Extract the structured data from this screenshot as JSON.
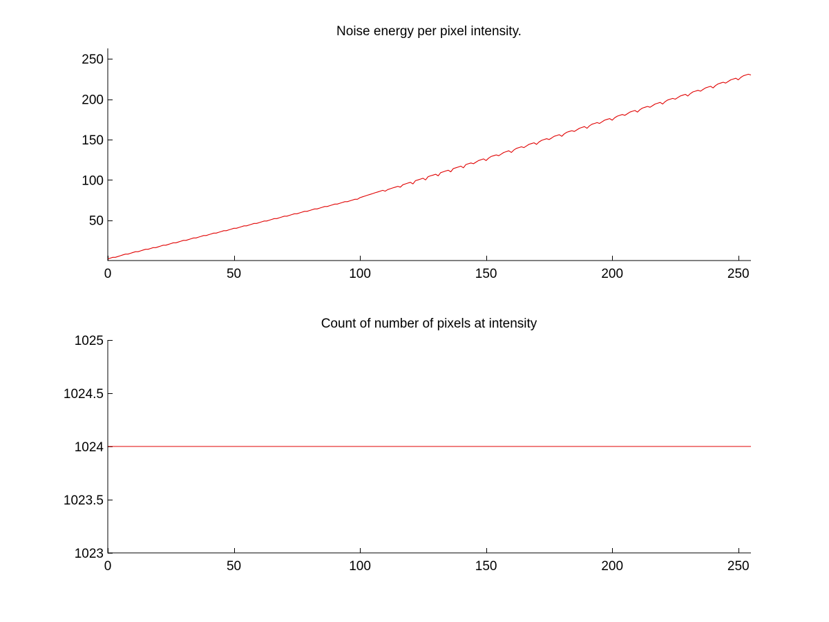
{
  "colors": {
    "series": "#e00000",
    "axis": "#000000",
    "background": "#ffffff"
  },
  "chart_data": [
    {
      "type": "line",
      "title": "Noise energy per pixel intensity.",
      "xlabel": "",
      "ylabel": "",
      "xlim": [
        0,
        255
      ],
      "ylim": [
        0,
        263
      ],
      "xticks": [
        0,
        50,
        100,
        150,
        200,
        250
      ],
      "yticks": [
        50,
        100,
        150,
        200,
        250
      ],
      "grid": false,
      "series": [
        {
          "x_start": 0,
          "x_step": 1,
          "values": [
            2,
            3,
            4,
            4,
            5,
            6,
            7,
            8,
            8,
            9,
            10,
            11,
            11,
            12,
            13,
            14,
            14,
            15,
            16,
            16,
            17,
            18,
            19,
            19,
            20,
            21,
            22,
            22,
            23,
            24,
            25,
            25,
            26,
            27,
            28,
            28,
            29,
            30,
            31,
            31,
            32,
            33,
            34,
            34,
            35,
            36,
            37,
            37,
            38,
            39,
            40,
            40,
            41,
            42,
            43,
            43,
            44,
            45,
            46,
            46,
            47,
            48,
            49,
            49,
            50,
            51,
            52,
            52,
            53,
            54,
            55,
            55,
            56,
            57,
            58,
            58,
            59,
            60,
            61,
            61,
            62,
            63,
            64,
            64,
            65,
            66,
            67,
            67,
            68,
            69,
            70,
            70,
            71,
            72,
            73,
            73,
            74,
            75,
            76,
            76,
            78,
            79,
            80,
            81,
            82,
            83,
            84,
            85,
            86,
            87,
            86,
            88,
            89,
            90,
            91,
            92,
            91,
            94,
            95,
            96,
            97,
            95,
            99,
            100,
            101,
            102,
            100,
            104,
            105,
            106,
            107,
            105,
            109,
            110,
            111,
            112,
            110,
            114,
            115,
            116,
            117,
            115,
            119,
            120,
            121,
            120,
            122,
            124,
            125,
            126,
            124,
            127,
            129,
            130,
            131,
            130,
            132,
            134,
            135,
            136,
            134,
            137,
            139,
            140,
            141,
            140,
            142,
            144,
            145,
            146,
            144,
            147,
            149,
            150,
            151,
            150,
            152,
            154,
            155,
            156,
            154,
            157,
            159,
            160,
            161,
            160,
            162,
            164,
            165,
            166,
            164,
            167,
            169,
            170,
            171,
            170,
            172,
            174,
            175,
            176,
            174,
            177,
            179,
            180,
            181,
            180,
            182,
            184,
            185,
            186,
            184,
            187,
            189,
            190,
            191,
            190,
            192,
            194,
            195,
            196,
            194,
            197,
            199,
            200,
            201,
            200,
            202,
            204,
            205,
            206,
            204,
            207,
            209,
            210,
            211,
            210,
            212,
            214,
            215,
            216,
            214,
            217,
            219,
            220,
            221,
            220,
            222,
            224,
            225,
            226,
            224,
            227,
            229,
            230,
            231,
            230
          ],
          "shape_note_removed": true
        }
      ]
    },
    {
      "type": "line",
      "title": "Count of number of pixels at intensity",
      "xlabel": "",
      "ylabel": "",
      "xlim": [
        0,
        255
      ],
      "ylim": [
        1023,
        1025
      ],
      "xticks": [
        0,
        50,
        100,
        150,
        200,
        250
      ],
      "yticks": [
        1023,
        1023.5,
        1024,
        1024.5,
        1025
      ],
      "ytick_labels": [
        "1023",
        "1023.5",
        "1024",
        "1024.5",
        "1025"
      ],
      "grid": false,
      "series": [
        {
          "x": [
            0,
            255
          ],
          "values": [
            1024,
            1024
          ]
        }
      ]
    }
  ]
}
